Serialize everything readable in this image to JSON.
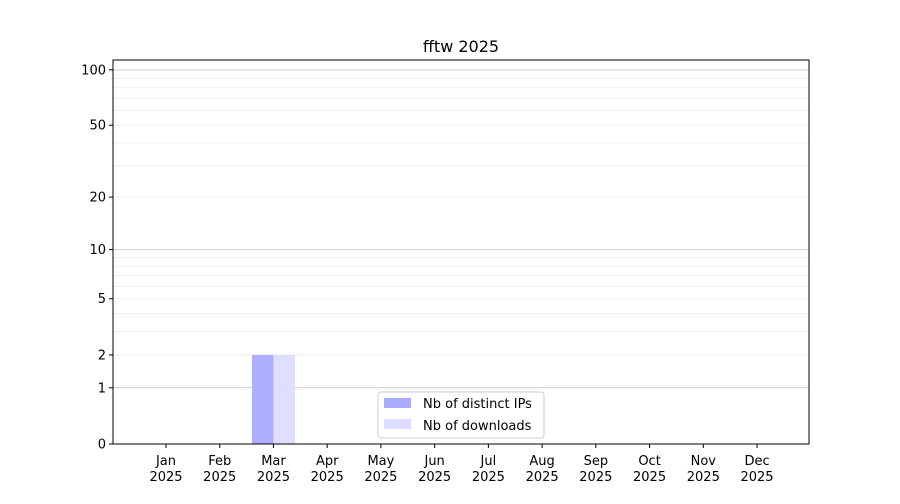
{
  "chart_data": {
    "type": "bar",
    "title": "fftw 2025",
    "xlabel": "",
    "ylabel": "",
    "yscale": "log10(1+y)",
    "ylim": [
      0,
      113
    ],
    "grid": "horizontal major and minor",
    "legend_position": "lower-center",
    "categories": [
      "Jan\n2025",
      "Feb\n2025",
      "Mar\n2025",
      "Apr\n2025",
      "May\n2025",
      "Jun\n2025",
      "Jul\n2025",
      "Aug\n2025",
      "Sep\n2025",
      "Oct\n2025",
      "Nov\n2025",
      "Dec\n2025"
    ],
    "category_lines": [
      [
        "Jan",
        "2025"
      ],
      [
        "Feb",
        "2025"
      ],
      [
        "Mar",
        "2025"
      ],
      [
        "Apr",
        "2025"
      ],
      [
        "May",
        "2025"
      ],
      [
        "Jun",
        "2025"
      ],
      [
        "Jul",
        "2025"
      ],
      [
        "Aug",
        "2025"
      ],
      [
        "Sep",
        "2025"
      ],
      [
        "Oct",
        "2025"
      ],
      [
        "Nov",
        "2025"
      ],
      [
        "Dec",
        "2025"
      ]
    ],
    "yticks": [
      0,
      1,
      2,
      5,
      10,
      20,
      50,
      100
    ],
    "ytick_labels": [
      "0",
      "1",
      "2",
      "5",
      "10",
      "20",
      "50",
      "100"
    ],
    "series": [
      {
        "name": "Nb of distinct IPs",
        "color": "#aaaaff",
        "values": [
          0,
          0,
          2,
          0,
          0,
          0,
          0,
          0,
          0,
          0,
          0,
          0
        ]
      },
      {
        "name": "Nb of downloads",
        "color": "#ddddff",
        "values": [
          0,
          0,
          2,
          0,
          0,
          0,
          0,
          0,
          0,
          0,
          0,
          0
        ]
      }
    ]
  }
}
